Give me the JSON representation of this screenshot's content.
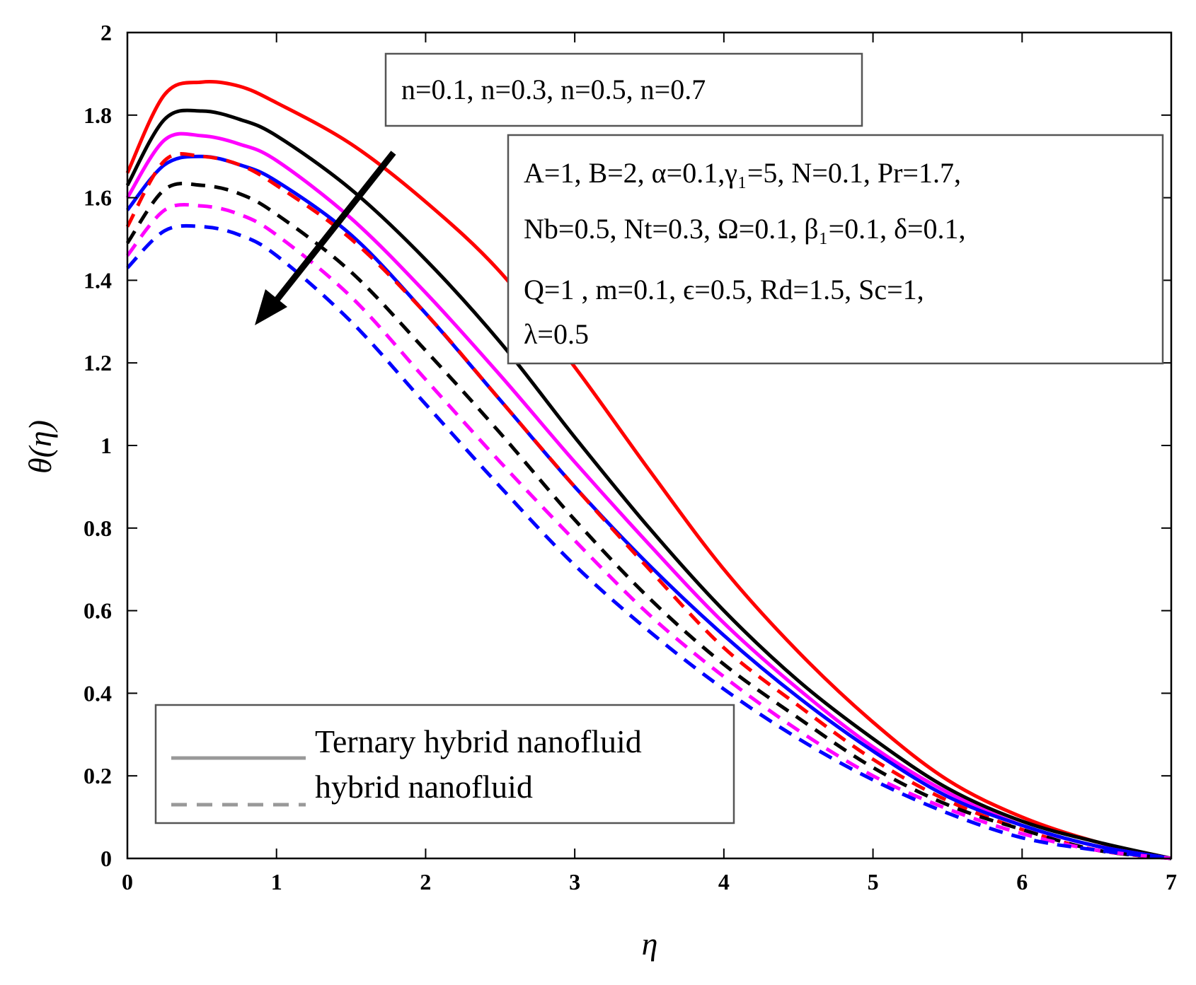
{
  "chart_data": {
    "type": "line",
    "title": "",
    "xlabel": "η",
    "ylabel": "θ(η)",
    "xlim": [
      0,
      7
    ],
    "ylim": [
      0,
      2
    ],
    "grid": false,
    "x_ticks": [
      "0",
      "1",
      "2",
      "3",
      "4",
      "5",
      "6",
      "7"
    ],
    "y_ticks": [
      "0",
      "0.2",
      "0.4",
      "0.6",
      "0.8",
      "1",
      "1.2",
      "1.4",
      "1.6",
      "1.8",
      "2"
    ],
    "series": [
      {
        "name": "Ternary hybrid nanofluid, n=0.1",
        "color": "#ff0000",
        "style": "solid",
        "x": [
          0,
          0.25,
          0.5,
          0.75,
          1,
          1.5,
          2,
          2.5,
          3,
          3.5,
          4,
          4.5,
          5,
          5.5,
          6,
          6.5,
          7
        ],
        "values": [
          1.66,
          1.85,
          1.88,
          1.87,
          1.83,
          1.73,
          1.59,
          1.42,
          1.19,
          0.94,
          0.7,
          0.5,
          0.33,
          0.19,
          0.1,
          0.04,
          0.0
        ]
      },
      {
        "name": "Ternary hybrid nanofluid, n=0.3",
        "color": "#000000",
        "style": "solid",
        "x": [
          0,
          0.25,
          0.5,
          0.75,
          1,
          1.5,
          2,
          2.5,
          3,
          3.5,
          4,
          4.5,
          5,
          5.5,
          6,
          6.5,
          7
        ],
        "values": [
          1.63,
          1.79,
          1.81,
          1.79,
          1.75,
          1.62,
          1.45,
          1.25,
          1.02,
          0.8,
          0.6,
          0.43,
          0.29,
          0.17,
          0.09,
          0.04,
          0.0
        ]
      },
      {
        "name": "Ternary hybrid nanofluid, n=0.5",
        "color": "#ff00ff",
        "style": "solid",
        "x": [
          0,
          0.25,
          0.5,
          0.75,
          1,
          1.5,
          2,
          2.5,
          3,
          3.5,
          4,
          4.5,
          5,
          5.5,
          6,
          6.5,
          7
        ],
        "values": [
          1.6,
          1.74,
          1.75,
          1.73,
          1.69,
          1.55,
          1.37,
          1.17,
          0.96,
          0.76,
          0.57,
          0.41,
          0.27,
          0.16,
          0.08,
          0.03,
          0.0
        ]
      },
      {
        "name": "Ternary hybrid nanofluid, n=0.7",
        "color": "#0000ff",
        "style": "solid",
        "x": [
          0,
          0.25,
          0.5,
          0.75,
          1,
          1.5,
          2,
          2.5,
          3,
          3.5,
          4,
          4.5,
          5,
          5.5,
          6,
          6.5,
          7
        ],
        "values": [
          1.57,
          1.68,
          1.7,
          1.68,
          1.64,
          1.51,
          1.32,
          1.11,
          0.9,
          0.71,
          0.54,
          0.39,
          0.26,
          0.15,
          0.08,
          0.03,
          0.0
        ]
      },
      {
        "name": "hybrid nanofluid, n=0.1",
        "color": "#ff0000",
        "style": "dashed",
        "x": [
          0,
          0.25,
          0.5,
          0.75,
          1,
          1.5,
          2,
          2.5,
          3,
          3.5,
          4,
          4.5,
          5,
          5.5,
          6,
          6.5,
          7
        ],
        "values": [
          1.53,
          1.69,
          1.7,
          1.68,
          1.63,
          1.5,
          1.32,
          1.11,
          0.9,
          0.7,
          0.51,
          0.37,
          0.24,
          0.14,
          0.07,
          0.02,
          0.0
        ]
      },
      {
        "name": "hybrid nanofluid, n=0.3",
        "color": "#000000",
        "style": "dashed",
        "x": [
          0,
          0.25,
          0.5,
          0.75,
          1,
          1.5,
          2,
          2.5,
          3,
          3.5,
          4,
          4.5,
          5,
          5.5,
          6,
          6.5,
          7
        ],
        "values": [
          1.49,
          1.62,
          1.63,
          1.61,
          1.56,
          1.42,
          1.23,
          1.03,
          0.82,
          0.63,
          0.47,
          0.34,
          0.22,
          0.13,
          0.07,
          0.02,
          0.0
        ]
      },
      {
        "name": "hybrid nanofluid, n=0.5",
        "color": "#ff00ff",
        "style": "dashed",
        "x": [
          0,
          0.25,
          0.5,
          0.75,
          1,
          1.5,
          2,
          2.5,
          3,
          3.5,
          4,
          4.5,
          5,
          5.5,
          6,
          6.5,
          7
        ],
        "values": [
          1.46,
          1.57,
          1.58,
          1.56,
          1.51,
          1.36,
          1.16,
          0.96,
          0.77,
          0.59,
          0.44,
          0.31,
          0.2,
          0.12,
          0.06,
          0.02,
          0.0
        ]
      },
      {
        "name": "hybrid nanofluid, n=0.7",
        "color": "#0000ff",
        "style": "dashed",
        "x": [
          0,
          0.25,
          0.5,
          0.75,
          1,
          1.5,
          2,
          2.5,
          3,
          3.5,
          4,
          4.5,
          5,
          5.5,
          6,
          6.5,
          7
        ],
        "values": [
          1.43,
          1.52,
          1.53,
          1.51,
          1.46,
          1.3,
          1.1,
          0.9,
          0.71,
          0.55,
          0.41,
          0.29,
          0.19,
          0.11,
          0.05,
          0.02,
          0.0
        ]
      }
    ],
    "annotations": {
      "n_values": "n=0.1, n=0.3, n=0.5, n=0.7",
      "params": [
        "A=1, B=2, α=0.1,γ₁=5, N=0.1, Pr=1.7,",
        "Nb=0.5, Nt=0.3, Ω=0.1, β₁=0.1, δ=0.1,",
        "Q=1 ,  m=0.1,  ϵ=0.5,  Rd=1.5,  Sc=1,",
        "λ=0.5"
      ]
    },
    "legend": {
      "position": "bottom-left",
      "entries": [
        "Ternary hybrid nanofluid",
        "hybrid nanofluid"
      ],
      "line_color": "#999999"
    }
  }
}
